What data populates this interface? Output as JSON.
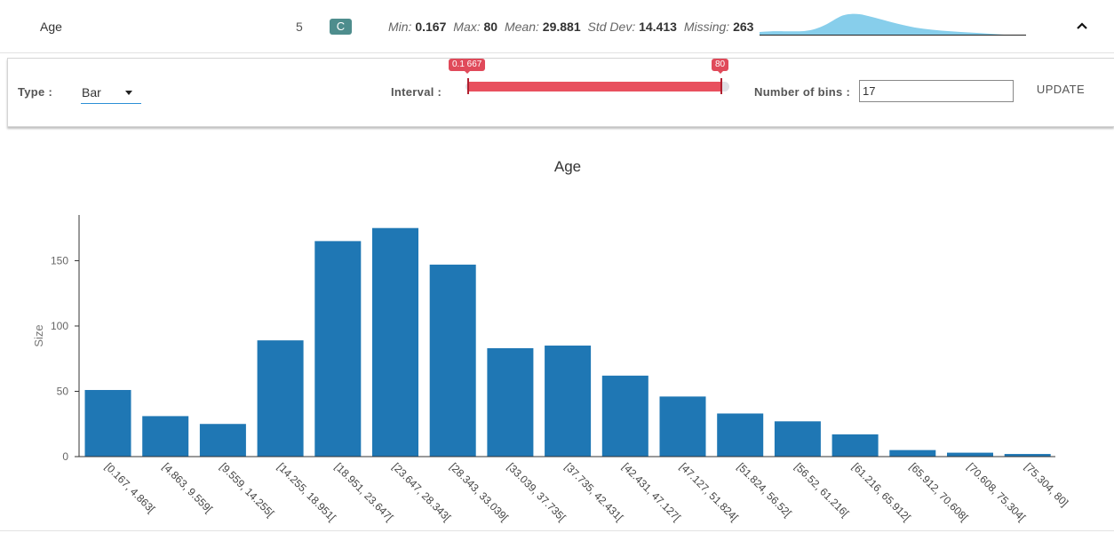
{
  "variable": {
    "name": "Age",
    "index": "5",
    "type_badge": "C",
    "stats": {
      "min_label": "Min:",
      "min": "0.167",
      "max_label": "Max:",
      "max": "80",
      "mean_label": "Mean:",
      "mean": "29.881",
      "std_label": "Std Dev:",
      "std": "14.413",
      "missing_label": "Missing:",
      "missing": "263"
    },
    "sparkline_icon": "density-sparkline",
    "collapse_icon": "chevron-up-icon"
  },
  "controls": {
    "type_label": "Type :",
    "type_value": "Bar",
    "interval_label": "Interval :",
    "interval_min": "0.1 667",
    "interval_max": "80",
    "bins_label": "Number of bins :",
    "bins_value": "17",
    "update_label": "UPDATE"
  },
  "colors": {
    "bar": "#1f77b4",
    "slider": "#e8505e",
    "badge": "#4e8d8d",
    "sparkline": "#87ceeb"
  },
  "chart_data": {
    "type": "bar",
    "title": "Age",
    "xlabel": "",
    "ylabel": "Size",
    "ylim": [
      0,
      185
    ],
    "yticks": [
      0,
      50,
      100,
      150
    ],
    "categories": [
      "[0.167, 4.863[",
      "[4.863, 9.559[",
      "[9.559, 14.255[",
      "[14.255, 18.951[",
      "[18.951, 23.647[",
      "[23.647, 28.343[",
      "[28.343, 33.039[",
      "[33.039, 37.735[",
      "[37.735, 42.431[",
      "[42.431, 47.127[",
      "[47.127, 51.824[",
      "[51.824, 56.52[",
      "[56.52, 61.216[",
      "[61.216, 65.912[",
      "[65.912, 70.608[",
      "[70.608, 75.304[",
      "[75.304, 80]"
    ],
    "values": [
      51,
      31,
      25,
      89,
      165,
      175,
      147,
      83,
      85,
      62,
      46,
      33,
      27,
      17,
      5,
      3,
      2
    ]
  }
}
